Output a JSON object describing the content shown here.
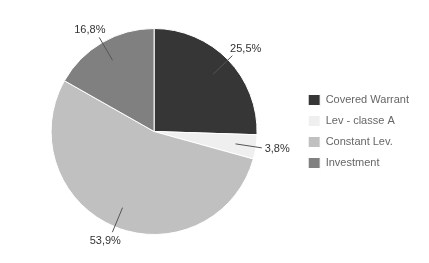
{
  "chart_data": {
    "type": "pie",
    "categories": [
      "Covered Warrant",
      "Lev - classe A",
      "Constant Lev.",
      "Investment"
    ],
    "values": [
      25.5,
      3.8,
      53.9,
      16.8
    ],
    "value_labels": [
      "25,5%",
      "3,8%",
      "53,9%",
      "16,8%"
    ],
    "colors": [
      "#363636",
      "#efefef",
      "#c0c0c0",
      "#808080"
    ],
    "data_labels": true,
    "legend": "right"
  }
}
